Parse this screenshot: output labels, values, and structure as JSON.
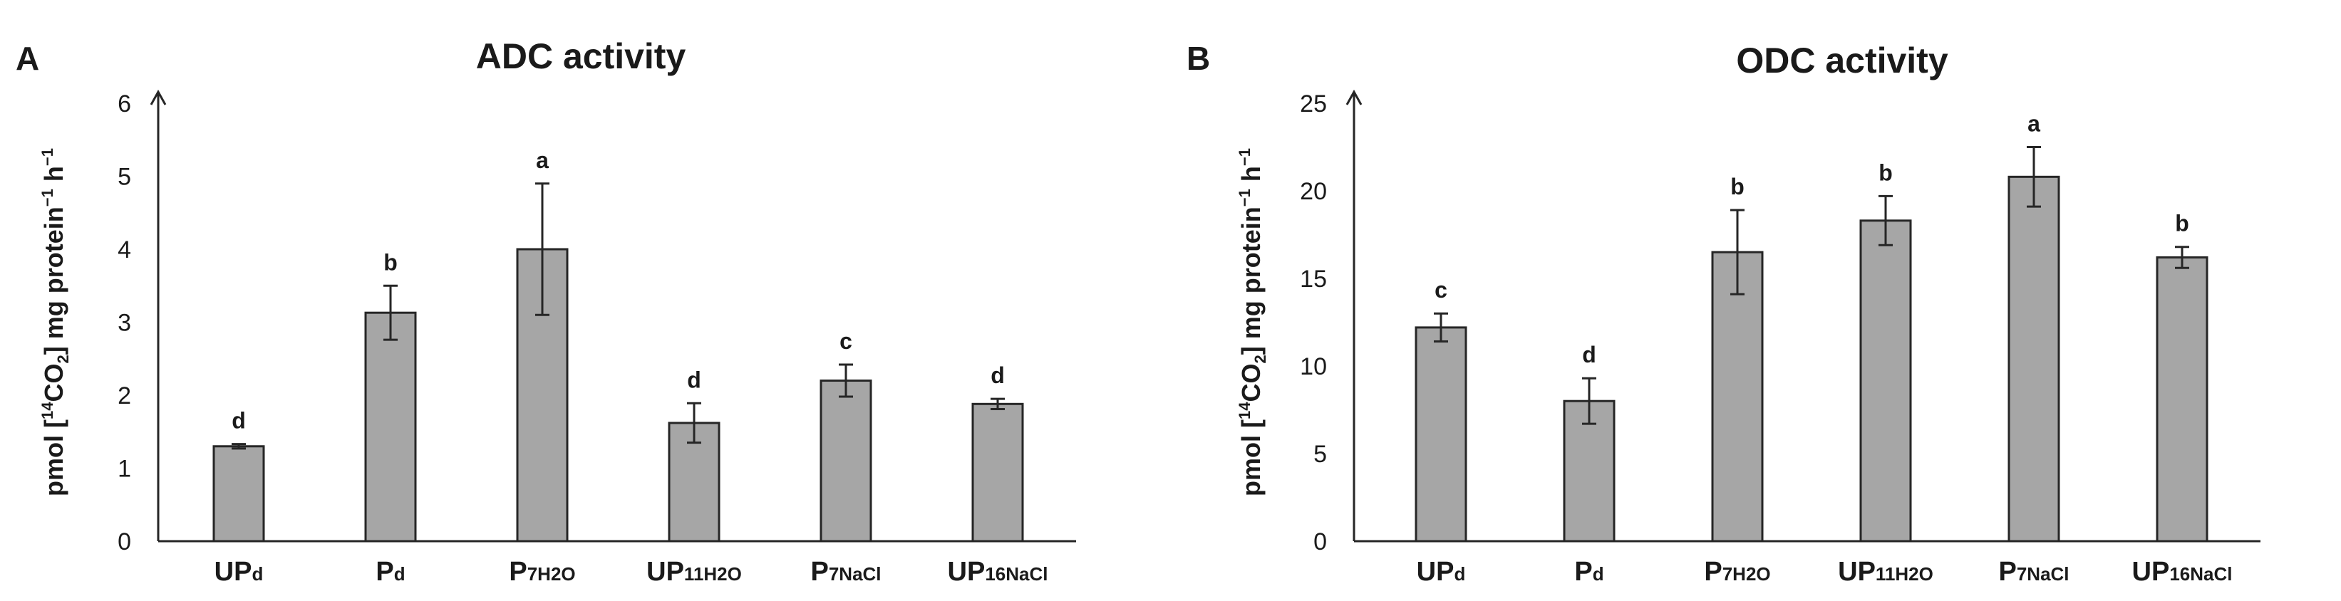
{
  "chart_data": [
    {
      "type": "bar",
      "panel": "A",
      "title": "ADC activity",
      "ylabel": "pmol [14CO2] mg protein−1 h−1",
      "ylim": [
        0,
        6
      ],
      "yticks": [
        "0",
        "1",
        "2",
        "3",
        "4",
        "5",
        "6"
      ],
      "categories": [
        {
          "main": "UP",
          "sub": "d"
        },
        {
          "main": "P",
          "sub": "d"
        },
        {
          "main": "P",
          "sub": "7H2O"
        },
        {
          "main": "UP",
          "sub": "11H2O"
        },
        {
          "main": "P",
          "sub": "7NaCl"
        },
        {
          "main": "UP",
          "sub": "16NaCl"
        }
      ],
      "values": [
        1.3,
        3.13,
        4.0,
        1.62,
        2.2,
        1.88
      ],
      "errors": [
        0.03,
        0.37,
        0.9,
        0.27,
        0.22,
        0.07
      ],
      "significance": [
        "d",
        "b",
        "a",
        "d",
        "c",
        "d"
      ],
      "grid": false,
      "legend": "none",
      "bar_color": "#a6a6a6"
    },
    {
      "type": "bar",
      "panel": "B",
      "title": "ODC activity",
      "ylabel": "pmol [14CO2] mg protein−1 h−1",
      "ylim": [
        0,
        25
      ],
      "yticks": [
        "0",
        "5",
        "10",
        "15",
        "20",
        "25"
      ],
      "categories": [
        {
          "main": "UP",
          "sub": "d"
        },
        {
          "main": "P",
          "sub": "d"
        },
        {
          "main": "P",
          "sub": "7H2O"
        },
        {
          "main": "UP",
          "sub": "11H2O"
        },
        {
          "main": "P",
          "sub": "7NaCl"
        },
        {
          "main": "UP",
          "sub": "16NaCl"
        }
      ],
      "values": [
        12.2,
        8.0,
        16.5,
        18.3,
        20.8,
        16.2
      ],
      "errors": [
        0.8,
        1.3,
        2.4,
        1.4,
        1.7,
        0.6
      ],
      "significance": [
        "c",
        "d",
        "b",
        "b",
        "a",
        "b"
      ],
      "grid": false,
      "legend": "none",
      "bar_color": "#a6a6a6"
    }
  ]
}
